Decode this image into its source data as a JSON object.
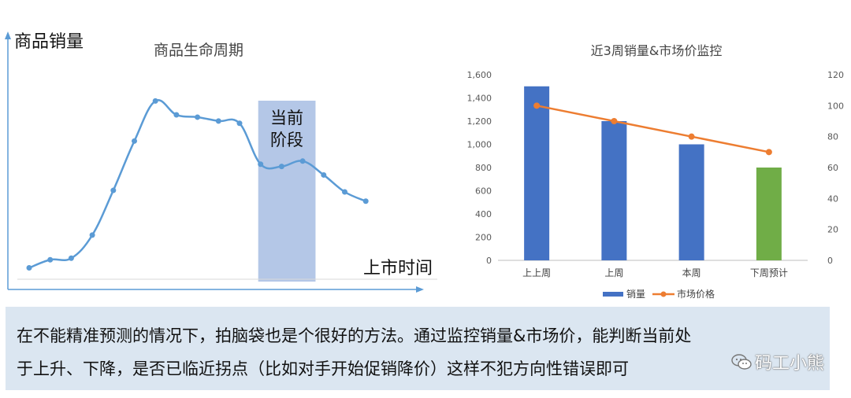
{
  "lifecycle": {
    "title": "商品生命周期",
    "y_axis_label": "商品销量",
    "x_axis_label": "上市时间",
    "highlight_label_line1": "当前",
    "highlight_label_line2": "阶段"
  },
  "monitor": {
    "title": "近3周销量&市场价监控"
  },
  "chart_data": [
    {
      "type": "line",
      "title": "商品生命周期",
      "xlabel": "上市时间",
      "ylabel": "商品销量",
      "x": [
        1,
        2,
        3,
        4,
        5,
        6,
        7,
        8,
        9,
        10,
        11,
        12,
        13,
        14,
        15,
        16,
        17
      ],
      "values": [
        1.5,
        12,
        14,
        44,
        102,
        166,
        218,
        200,
        197,
        192,
        189,
        136,
        133,
        140,
        122,
        100,
        88
      ],
      "highlight_range": [
        12,
        14.5
      ],
      "highlight_label": "当前阶段",
      "color": "#5b9bd5"
    },
    {
      "type": "bar",
      "title": "近3周销量&市场价监控",
      "categories": [
        "上上周",
        "上周",
        "本周",
        "下周预计"
      ],
      "series": [
        {
          "name": "销量",
          "axis": "left",
          "values": [
            1500,
            1200,
            1000,
            800
          ],
          "colors": [
            "#4472c4",
            "#4472c4",
            "#4472c4",
            "#70ad47"
          ]
        },
        {
          "name": "市场价格",
          "axis": "right",
          "type": "line",
          "values": [
            100,
            90,
            80,
            70
          ],
          "color": "#ed7d31"
        }
      ],
      "ylim": [
        0,
        1600
      ],
      "yticks": [
        "0",
        "200",
        "400",
        "600",
        "800",
        "1,000",
        "1,200",
        "1,400",
        "1,600"
      ],
      "y2lim": [
        0,
        120
      ],
      "y2ticks": [
        "0",
        "20",
        "40",
        "60",
        "80",
        "100",
        "120"
      ],
      "legend": "bottom"
    }
  ],
  "caption": {
    "line1": "在不能精准预测的情况下，拍脑袋也是个很好的方法。通过监控销量&市场价，能判断当前处",
    "line2": "于上升、下降，是否已临近拐点（比如对手开始促销降价）这样不犯方向性错误即可"
  },
  "watermark": {
    "text": "码工小熊",
    "icon": "wechat-icon"
  }
}
